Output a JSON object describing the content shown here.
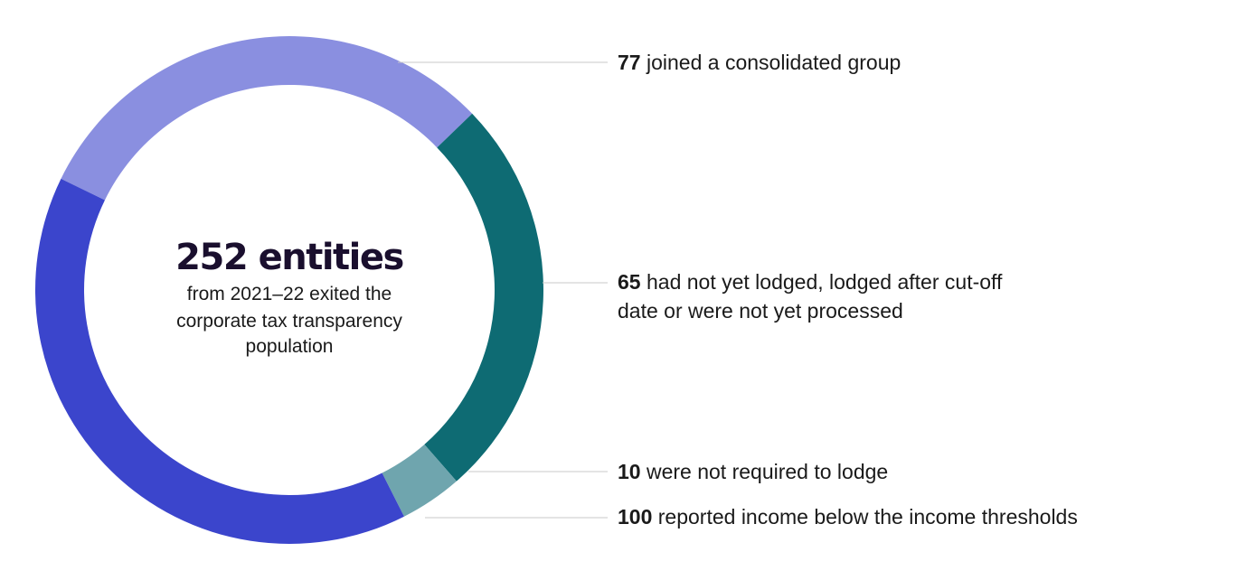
{
  "chart_data": {
    "type": "pie",
    "donut": true,
    "total_label": "252 entities",
    "center_subtitle_lines": [
      "from 2021–22 exited the",
      "corporate tax transparency",
      "population"
    ],
    "slices": [
      {
        "value": 77,
        "value_label": "77",
        "text_lines": [
          " joined a consolidated group"
        ],
        "color": "#8a8fe0"
      },
      {
        "value": 65,
        "value_label": "65",
        "text_lines": [
          " had not yet lodged, lodged after cut-off",
          "date or were not yet processed"
        ],
        "color": "#0e6b73"
      },
      {
        "value": 10,
        "value_label": "10",
        "text_lines": [
          " were not required to lodge"
        ],
        "color": "#6fa5ae"
      },
      {
        "value": 100,
        "value_label": "100",
        "text_lines": [
          " reported income below the income thresholds"
        ],
        "color": "#3b45cc"
      }
    ]
  }
}
